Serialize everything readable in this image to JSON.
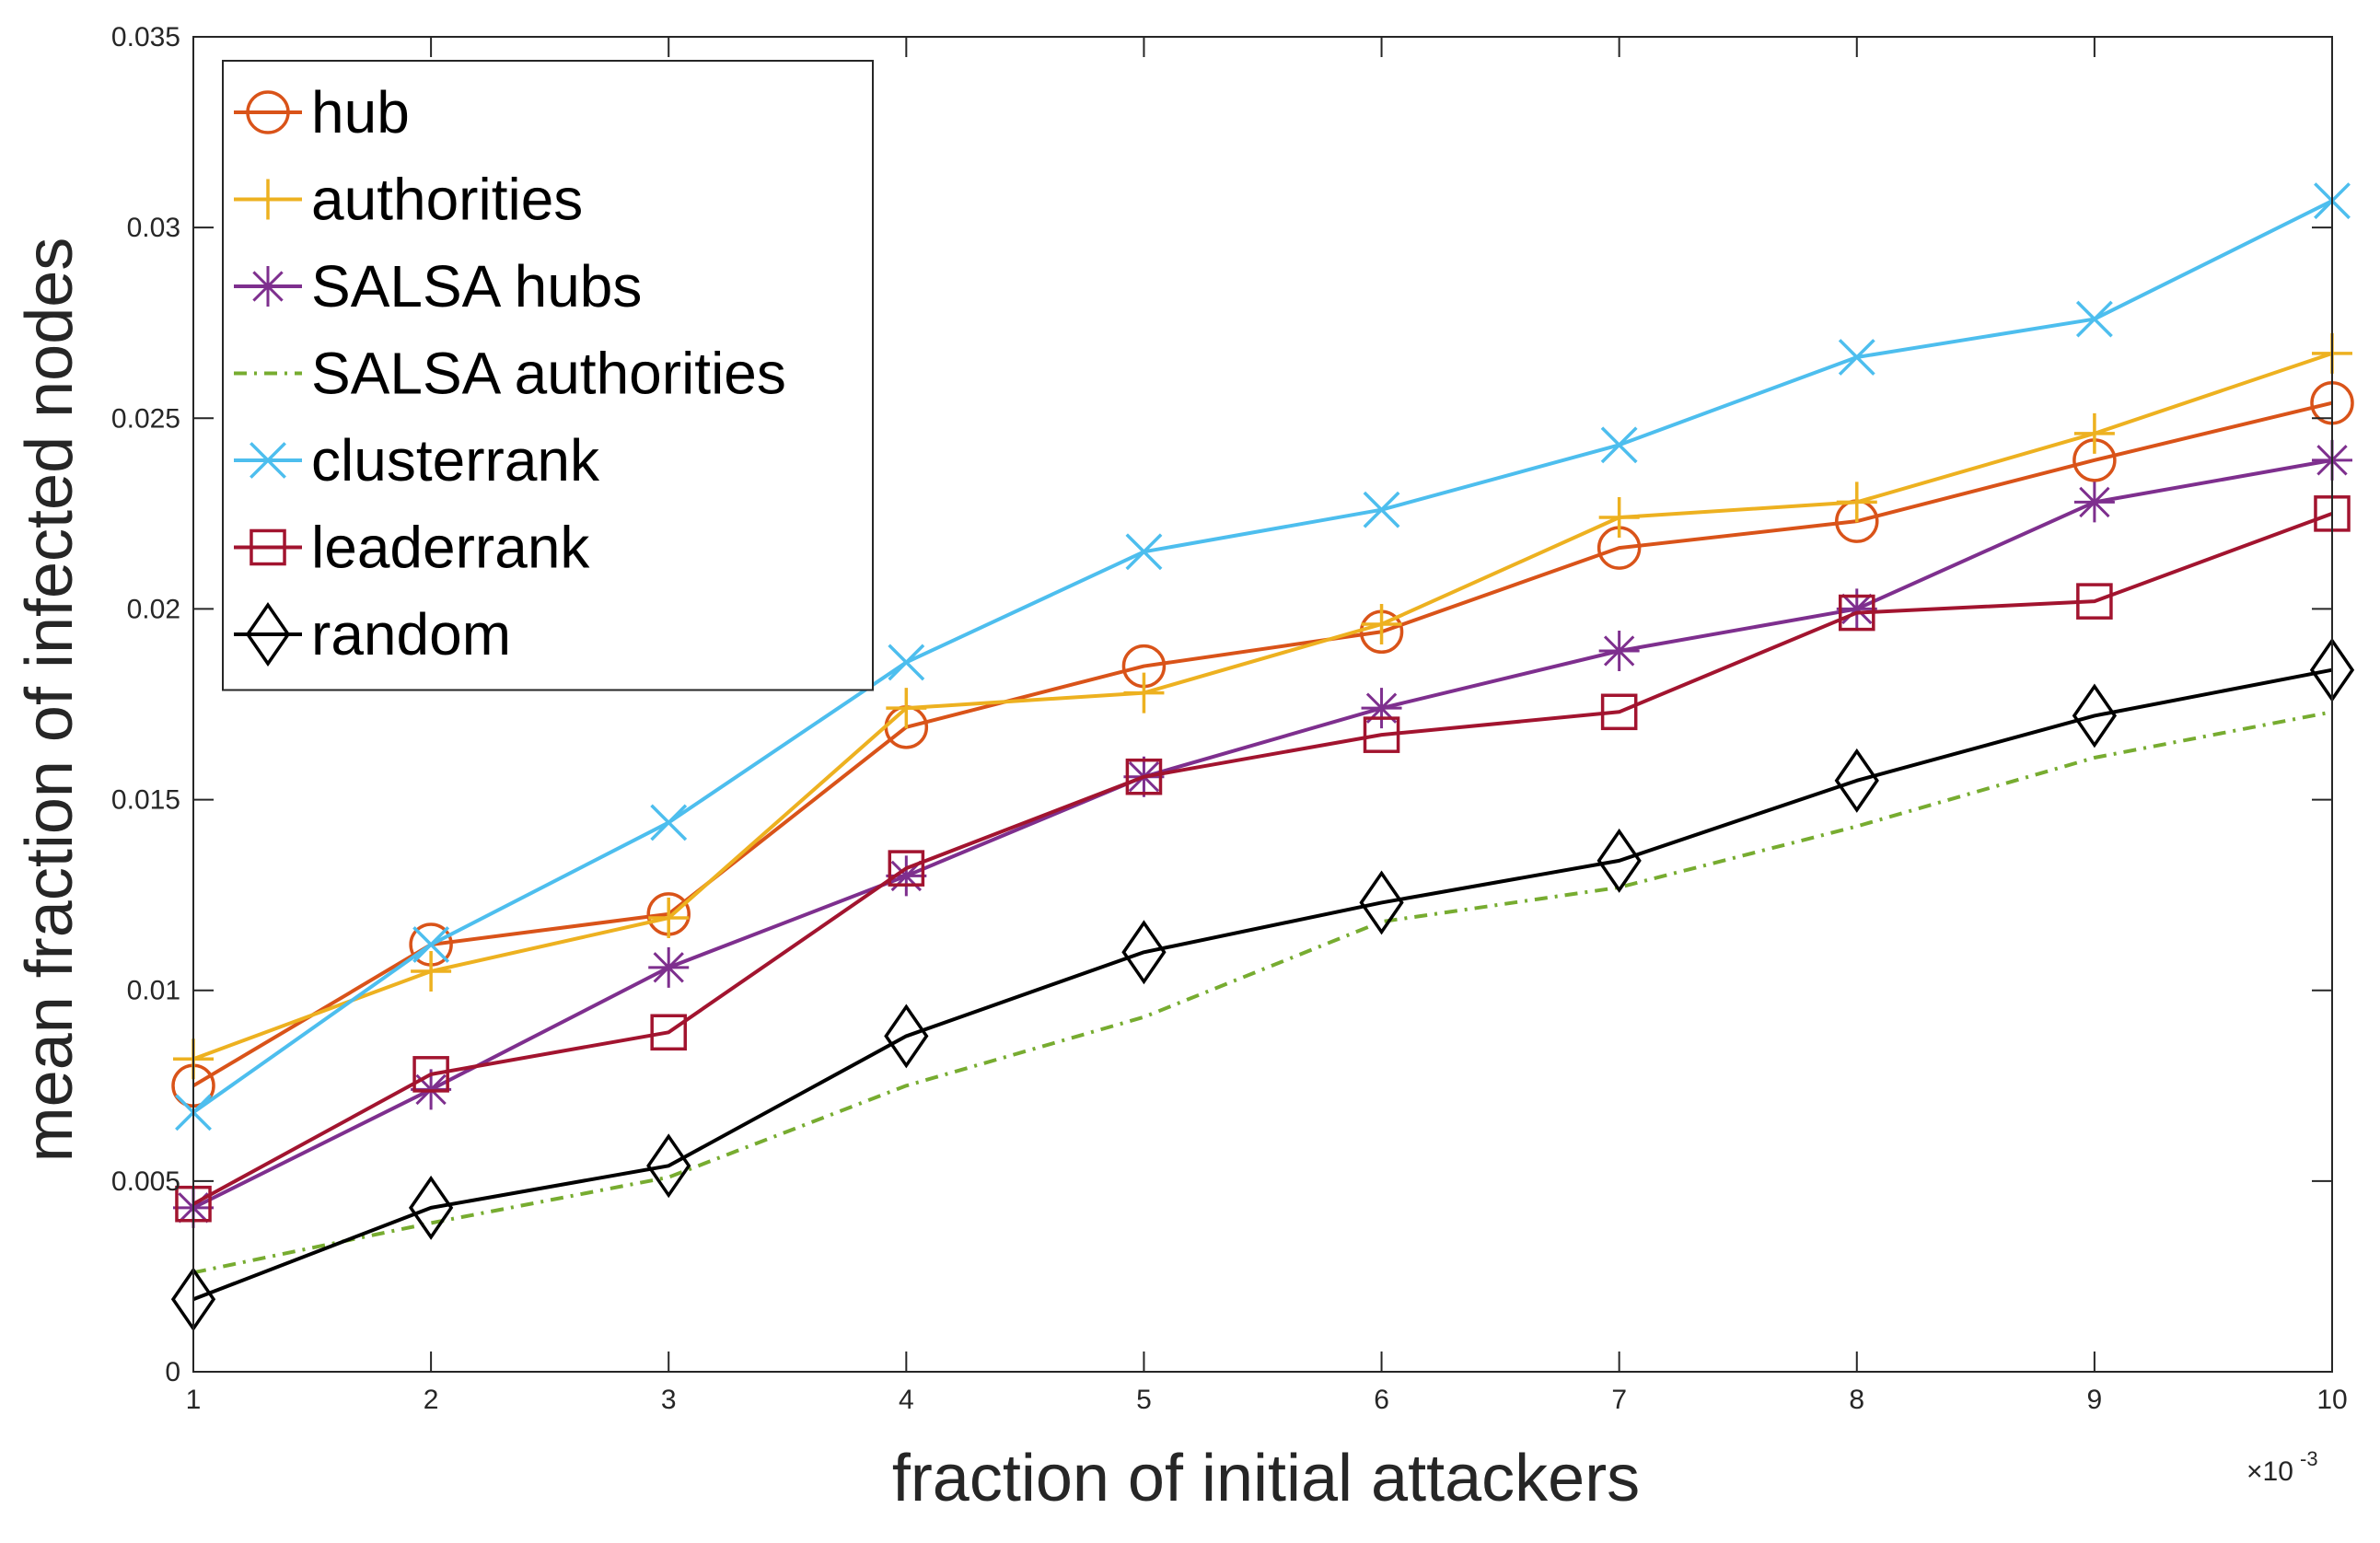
{
  "chart_data": {
    "type": "line",
    "xlabel": "fraction of initial attackers",
    "ylabel": "mean fraction of infected nodes",
    "x_exponent_label": "×10",
    "x_exponent_power": "-3",
    "x": [
      1,
      2,
      3,
      4,
      5,
      6,
      7,
      8,
      9,
      10
    ],
    "x_tick_labels": [
      "1",
      "2",
      "3",
      "4",
      "5",
      "6",
      "7",
      "8",
      "9",
      "10"
    ],
    "y_ticks": [
      0,
      0.005,
      0.01,
      0.015,
      0.02,
      0.025,
      0.03,
      0.035
    ],
    "y_tick_labels": [
      "0",
      "0.005",
      "0.01",
      "0.015",
      "0.02",
      "0.025",
      "0.03",
      "0.035"
    ],
    "xlim": [
      1,
      10
    ],
    "ylim": [
      0,
      0.035
    ],
    "legend_position": "top-left",
    "series": [
      {
        "name": "hub",
        "color": "#D95319",
        "marker": "circle",
        "dash": "solid",
        "values": [
          0.0075,
          0.0112,
          0.012,
          0.0169,
          0.0185,
          0.0194,
          0.0216,
          0.0223,
          0.0239,
          0.0254
        ]
      },
      {
        "name": "authorities",
        "color": "#EDB120",
        "marker": "plus",
        "dash": "solid",
        "values": [
          0.0082,
          0.0105,
          0.0119,
          0.0174,
          0.0178,
          0.0196,
          0.0224,
          0.0228,
          0.0246,
          0.0267
        ]
      },
      {
        "name": "SALSA hubs",
        "color": "#7E2F8E",
        "marker": "asterisk",
        "dash": "solid",
        "values": [
          0.0043,
          0.0074,
          0.0106,
          0.013,
          0.0156,
          0.0174,
          0.0189,
          0.02,
          0.0228,
          0.0239
        ]
      },
      {
        "name": "SALSA authorities",
        "color": "#77AC30",
        "marker": "none",
        "dash": "dashdot",
        "values": [
          0.0026,
          0.0039,
          0.0051,
          0.0075,
          0.0093,
          0.0118,
          0.0127,
          0.0143,
          0.0161,
          0.0173
        ]
      },
      {
        "name": "clusterrank",
        "color": "#4DBEEE",
        "marker": "x",
        "dash": "solid",
        "values": [
          0.0068,
          0.0112,
          0.0144,
          0.0186,
          0.0215,
          0.0226,
          0.0243,
          0.0266,
          0.0276,
          0.0307
        ]
      },
      {
        "name": "leaderrank",
        "color": "#A2142F",
        "marker": "square",
        "dash": "solid",
        "values": [
          0.0044,
          0.0078,
          0.0089,
          0.0132,
          0.0156,
          0.0167,
          0.0173,
          0.0199,
          0.0202,
          0.0225
        ]
      },
      {
        "name": "random",
        "color": "#000000",
        "marker": "diamond",
        "dash": "solid",
        "values": [
          0.0019,
          0.0043,
          0.0054,
          0.0088,
          0.011,
          0.0123,
          0.0134,
          0.0155,
          0.0172,
          0.0184
        ]
      }
    ]
  }
}
